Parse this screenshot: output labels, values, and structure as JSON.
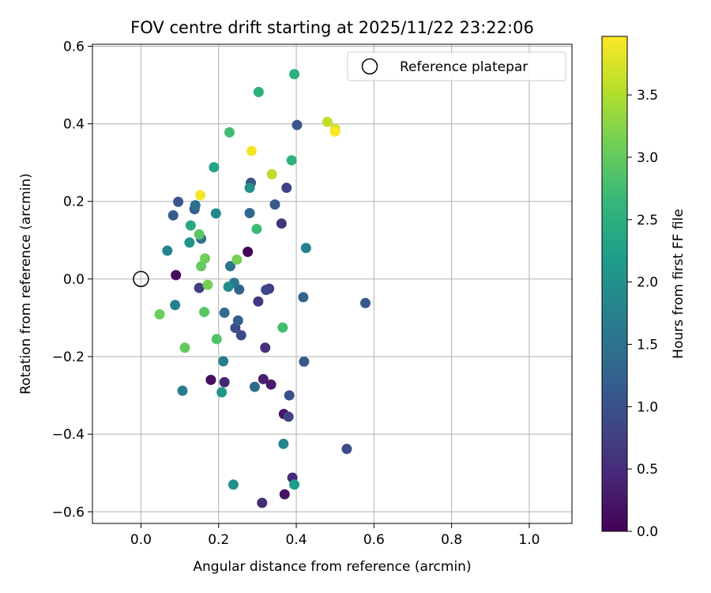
{
  "chart_data": {
    "type": "scatter",
    "title": "FOV centre drift starting at 2025/11/22 23:22:06",
    "xlabel": "Angular distance from reference (arcmin)",
    "ylabel": "Rotation from reference (arcmin)",
    "xlim": [
      -0.125,
      1.11
    ],
    "ylim": [
      -0.63,
      0.605
    ],
    "xticks": [
      0.0,
      0.2,
      0.4,
      0.6,
      0.8,
      1.0
    ],
    "xtick_labels": [
      "0.0",
      "0.2",
      "0.4",
      "0.6",
      "0.8",
      "1.0"
    ],
    "yticks": [
      -0.6,
      -0.4,
      -0.2,
      0.0,
      0.2,
      0.4,
      0.6
    ],
    "ytick_labels": [
      "−0.6",
      "−0.4",
      "−0.2",
      "0.0",
      "0.2",
      "0.4",
      "0.6"
    ],
    "grid": true,
    "legend": {
      "position": "top-right",
      "entries": [
        {
          "label": "Reference platepar",
          "marker": "open-circle"
        }
      ]
    },
    "reference_point": {
      "x": 0.0,
      "y": 0.0
    },
    "colorbar": {
      "label": "Hours from first FF file",
      "colormap": "viridis",
      "range": [
        0.0,
        3.97
      ],
      "ticks": [
        0.0,
        0.5,
        1.0,
        1.5,
        2.0,
        2.5,
        3.0,
        3.5
      ],
      "tick_labels": [
        "0.0",
        "0.5",
        "1.0",
        "1.5",
        "2.0",
        "2.5",
        "3.0",
        "3.5"
      ]
    },
    "colormap_stops": [
      "#440154",
      "#482878",
      "#3e4989",
      "#31688e",
      "#26828e",
      "#1f9e89",
      "#35b779",
      "#6ece58",
      "#b5de2b",
      "#fde725"
    ],
    "points": [
      {
        "x": 0.275,
        "y": 0.07,
        "h": 0.05
      },
      {
        "x": 0.09,
        "y": 0.01,
        "h": 0.1
      },
      {
        "x": 0.18,
        "y": -0.26,
        "h": 0.15
      },
      {
        "x": 0.37,
        "y": -0.555,
        "h": 0.2
      },
      {
        "x": 0.368,
        "y": -0.348,
        "h": 0.22
      },
      {
        "x": 0.335,
        "y": -0.272,
        "h": 0.3
      },
      {
        "x": 0.315,
        "y": -0.258,
        "h": 0.35
      },
      {
        "x": 0.215,
        "y": -0.266,
        "h": 0.4
      },
      {
        "x": 0.39,
        "y": -0.512,
        "h": 0.45
      },
      {
        "x": 0.312,
        "y": -0.577,
        "h": 0.5
      },
      {
        "x": 0.32,
        "y": -0.177,
        "h": 0.55
      },
      {
        "x": 0.362,
        "y": 0.143,
        "h": 0.6
      },
      {
        "x": 0.302,
        "y": -0.058,
        "h": 0.65
      },
      {
        "x": 0.33,
        "y": -0.025,
        "h": 0.7
      },
      {
        "x": 0.15,
        "y": -0.023,
        "h": 0.75
      },
      {
        "x": 0.38,
        "y": -0.355,
        "h": 0.78
      },
      {
        "x": 0.375,
        "y": 0.235,
        "h": 0.8
      },
      {
        "x": 0.322,
        "y": -0.028,
        "h": 0.85
      },
      {
        "x": 0.258,
        "y": -0.145,
        "h": 0.9
      },
      {
        "x": 0.53,
        "y": -0.438,
        "h": 0.92
      },
      {
        "x": 0.243,
        "y": -0.126,
        "h": 0.95
      },
      {
        "x": 0.382,
        "y": -0.3,
        "h": 1.0
      },
      {
        "x": 0.283,
        "y": 0.248,
        "h": 1.05
      },
      {
        "x": 0.402,
        "y": 0.397,
        "h": 1.05
      },
      {
        "x": 0.345,
        "y": 0.192,
        "h": 1.08
      },
      {
        "x": 0.096,
        "y": 0.199,
        "h": 1.1
      },
      {
        "x": 0.578,
        "y": -0.062,
        "h": 1.1
      },
      {
        "x": 0.42,
        "y": -0.213,
        "h": 1.12
      },
      {
        "x": 0.083,
        "y": 0.164,
        "h": 1.15
      },
      {
        "x": 0.138,
        "y": 0.18,
        "h": 1.2
      },
      {
        "x": 0.25,
        "y": -0.107,
        "h": 1.2
      },
      {
        "x": 0.253,
        "y": -0.027,
        "h": 1.25
      },
      {
        "x": 0.418,
        "y": -0.047,
        "h": 1.3
      },
      {
        "x": 0.28,
        "y": 0.17,
        "h": 1.3
      },
      {
        "x": 0.293,
        "y": -0.278,
        "h": 1.35
      },
      {
        "x": 0.215,
        "y": -0.087,
        "h": 1.4
      },
      {
        "x": 0.14,
        "y": 0.19,
        "h": 1.45
      },
      {
        "x": 0.155,
        "y": 0.104,
        "h": 1.5
      },
      {
        "x": 0.23,
        "y": 0.033,
        "h": 1.55
      },
      {
        "x": 0.24,
        "y": -0.01,
        "h": 1.6
      },
      {
        "x": 0.107,
        "y": -0.288,
        "h": 1.65
      },
      {
        "x": 0.212,
        "y": -0.212,
        "h": 1.7
      },
      {
        "x": 0.088,
        "y": -0.067,
        "h": 1.7
      },
      {
        "x": 0.425,
        "y": 0.08,
        "h": 1.75
      },
      {
        "x": 0.068,
        "y": 0.073,
        "h": 1.8
      },
      {
        "x": 0.367,
        "y": -0.425,
        "h": 1.85
      },
      {
        "x": 0.193,
        "y": 0.169,
        "h": 1.85
      },
      {
        "x": 0.225,
        "y": -0.02,
        "h": 1.9
      },
      {
        "x": 0.28,
        "y": 0.235,
        "h": 1.95
      },
      {
        "x": 0.238,
        "y": -0.53,
        "h": 1.95
      },
      {
        "x": 0.125,
        "y": 0.094,
        "h": 2.05
      },
      {
        "x": 0.208,
        "y": -0.292,
        "h": 2.1
      },
      {
        "x": 0.395,
        "y": -0.53,
        "h": 2.2
      },
      {
        "x": 0.188,
        "y": 0.288,
        "h": 2.3
      },
      {
        "x": 0.128,
        "y": 0.138,
        "h": 2.4
      },
      {
        "x": 0.395,
        "y": 0.528,
        "h": 2.5
      },
      {
        "x": 0.303,
        "y": 0.482,
        "h": 2.5
      },
      {
        "x": 0.388,
        "y": 0.306,
        "h": 2.55
      },
      {
        "x": 0.298,
        "y": 0.129,
        "h": 2.7
      },
      {
        "x": 0.228,
        "y": 0.378,
        "h": 2.75
      },
      {
        "x": 0.365,
        "y": -0.125,
        "h": 2.75
      },
      {
        "x": 0.195,
        "y": -0.155,
        "h": 2.85
      },
      {
        "x": 0.163,
        "y": -0.085,
        "h": 2.9
      },
      {
        "x": 0.15,
        "y": 0.115,
        "h": 2.95
      },
      {
        "x": 0.113,
        "y": -0.177,
        "h": 3.0
      },
      {
        "x": 0.155,
        "y": 0.033,
        "h": 3.0
      },
      {
        "x": 0.048,
        "y": -0.091,
        "h": 3.05
      },
      {
        "x": 0.165,
        "y": 0.053,
        "h": 3.1
      },
      {
        "x": 0.172,
        "y": -0.015,
        "h": 3.15
      },
      {
        "x": 0.247,
        "y": 0.05,
        "h": 3.15
      },
      {
        "x": 0.337,
        "y": 0.27,
        "h": 3.55
      },
      {
        "x": 0.48,
        "y": 0.405,
        "h": 3.6
      },
      {
        "x": 0.5,
        "y": 0.387,
        "h": 3.7
      },
      {
        "x": 0.285,
        "y": 0.33,
        "h": 3.9
      },
      {
        "x": 0.153,
        "y": 0.216,
        "h": 3.9
      },
      {
        "x": 0.5,
        "y": 0.38,
        "h": 3.95
      }
    ]
  }
}
